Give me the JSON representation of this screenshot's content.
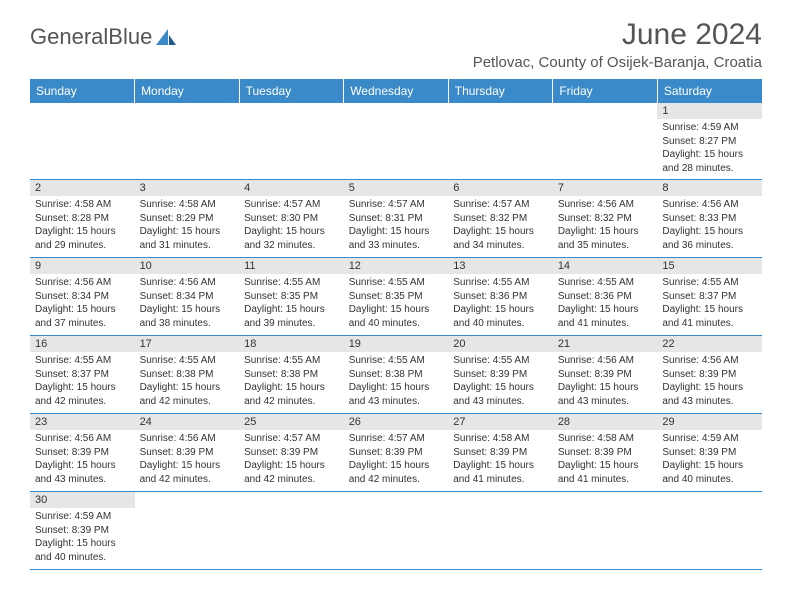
{
  "logo": {
    "text1": "General",
    "text2": "Blue"
  },
  "title": "June 2024",
  "location": "Petlovac, County of Osijek-Baranja, Croatia",
  "colors": {
    "header_bg": "#3a8ac9",
    "header_text": "#ffffff",
    "daynum_bg": "#e6e6e6",
    "border": "#3a8ac9",
    "text": "#333333",
    "title_text": "#555555"
  },
  "weekdays": [
    "Sunday",
    "Monday",
    "Tuesday",
    "Wednesday",
    "Thursday",
    "Friday",
    "Saturday"
  ],
  "weeks": [
    [
      null,
      null,
      null,
      null,
      null,
      null,
      {
        "n": "1",
        "sr": "4:59 AM",
        "ss": "8:27 PM",
        "dl": "15 hours and 28 minutes."
      }
    ],
    [
      {
        "n": "2",
        "sr": "4:58 AM",
        "ss": "8:28 PM",
        "dl": "15 hours and 29 minutes."
      },
      {
        "n": "3",
        "sr": "4:58 AM",
        "ss": "8:29 PM",
        "dl": "15 hours and 31 minutes."
      },
      {
        "n": "4",
        "sr": "4:57 AM",
        "ss": "8:30 PM",
        "dl": "15 hours and 32 minutes."
      },
      {
        "n": "5",
        "sr": "4:57 AM",
        "ss": "8:31 PM",
        "dl": "15 hours and 33 minutes."
      },
      {
        "n": "6",
        "sr": "4:57 AM",
        "ss": "8:32 PM",
        "dl": "15 hours and 34 minutes."
      },
      {
        "n": "7",
        "sr": "4:56 AM",
        "ss": "8:32 PM",
        "dl": "15 hours and 35 minutes."
      },
      {
        "n": "8",
        "sr": "4:56 AM",
        "ss": "8:33 PM",
        "dl": "15 hours and 36 minutes."
      }
    ],
    [
      {
        "n": "9",
        "sr": "4:56 AM",
        "ss": "8:34 PM",
        "dl": "15 hours and 37 minutes."
      },
      {
        "n": "10",
        "sr": "4:56 AM",
        "ss": "8:34 PM",
        "dl": "15 hours and 38 minutes."
      },
      {
        "n": "11",
        "sr": "4:55 AM",
        "ss": "8:35 PM",
        "dl": "15 hours and 39 minutes."
      },
      {
        "n": "12",
        "sr": "4:55 AM",
        "ss": "8:35 PM",
        "dl": "15 hours and 40 minutes."
      },
      {
        "n": "13",
        "sr": "4:55 AM",
        "ss": "8:36 PM",
        "dl": "15 hours and 40 minutes."
      },
      {
        "n": "14",
        "sr": "4:55 AM",
        "ss": "8:36 PM",
        "dl": "15 hours and 41 minutes."
      },
      {
        "n": "15",
        "sr": "4:55 AM",
        "ss": "8:37 PM",
        "dl": "15 hours and 41 minutes."
      }
    ],
    [
      {
        "n": "16",
        "sr": "4:55 AM",
        "ss": "8:37 PM",
        "dl": "15 hours and 42 minutes."
      },
      {
        "n": "17",
        "sr": "4:55 AM",
        "ss": "8:38 PM",
        "dl": "15 hours and 42 minutes."
      },
      {
        "n": "18",
        "sr": "4:55 AM",
        "ss": "8:38 PM",
        "dl": "15 hours and 42 minutes."
      },
      {
        "n": "19",
        "sr": "4:55 AM",
        "ss": "8:38 PM",
        "dl": "15 hours and 43 minutes."
      },
      {
        "n": "20",
        "sr": "4:55 AM",
        "ss": "8:39 PM",
        "dl": "15 hours and 43 minutes."
      },
      {
        "n": "21",
        "sr": "4:56 AM",
        "ss": "8:39 PM",
        "dl": "15 hours and 43 minutes."
      },
      {
        "n": "22",
        "sr": "4:56 AM",
        "ss": "8:39 PM",
        "dl": "15 hours and 43 minutes."
      }
    ],
    [
      {
        "n": "23",
        "sr": "4:56 AM",
        "ss": "8:39 PM",
        "dl": "15 hours and 43 minutes."
      },
      {
        "n": "24",
        "sr": "4:56 AM",
        "ss": "8:39 PM",
        "dl": "15 hours and 42 minutes."
      },
      {
        "n": "25",
        "sr": "4:57 AM",
        "ss": "8:39 PM",
        "dl": "15 hours and 42 minutes."
      },
      {
        "n": "26",
        "sr": "4:57 AM",
        "ss": "8:39 PM",
        "dl": "15 hours and 42 minutes."
      },
      {
        "n": "27",
        "sr": "4:58 AM",
        "ss": "8:39 PM",
        "dl": "15 hours and 41 minutes."
      },
      {
        "n": "28",
        "sr": "4:58 AM",
        "ss": "8:39 PM",
        "dl": "15 hours and 41 minutes."
      },
      {
        "n": "29",
        "sr": "4:59 AM",
        "ss": "8:39 PM",
        "dl": "15 hours and 40 minutes."
      }
    ],
    [
      {
        "n": "30",
        "sr": "4:59 AM",
        "ss": "8:39 PM",
        "dl": "15 hours and 40 minutes."
      },
      null,
      null,
      null,
      null,
      null,
      null
    ]
  ],
  "labels": {
    "sunrise": "Sunrise:",
    "sunset": "Sunset:",
    "daylight": "Daylight:"
  }
}
